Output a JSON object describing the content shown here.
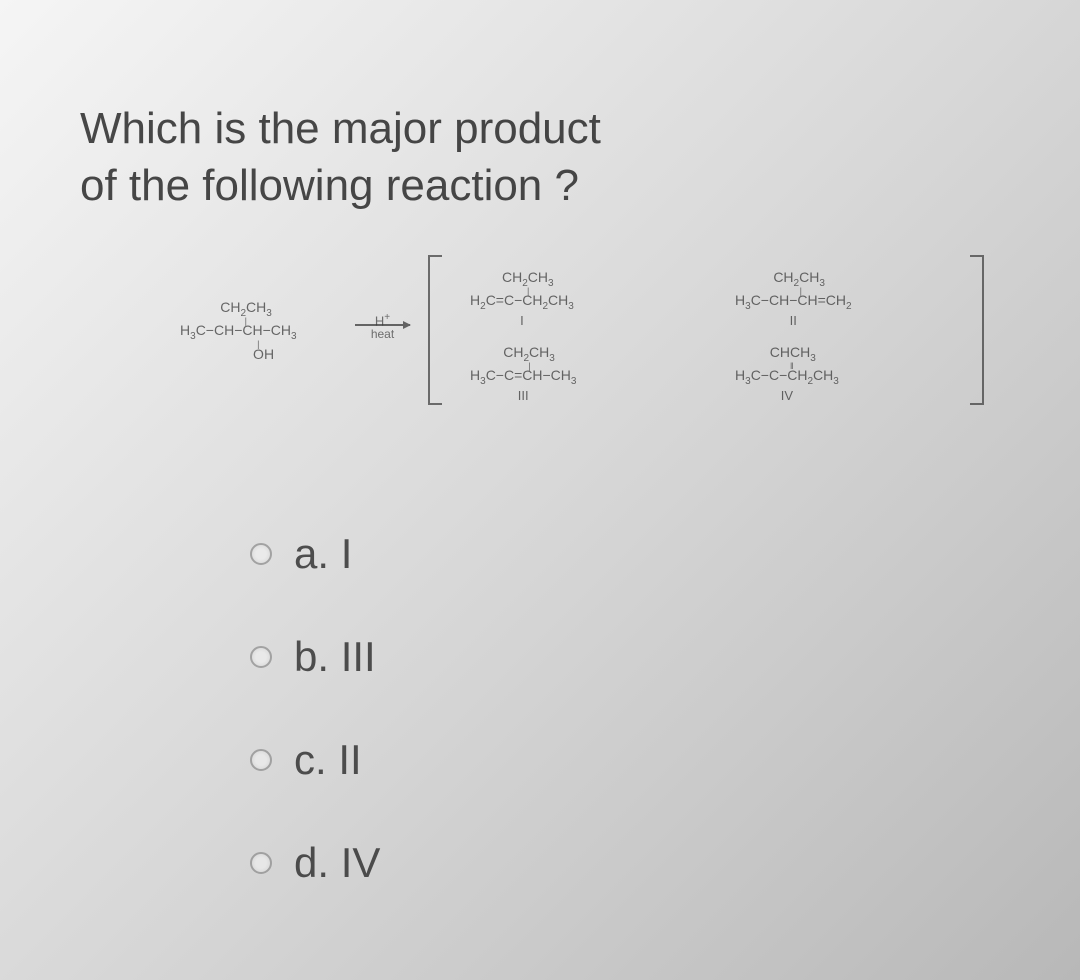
{
  "question": {
    "line1": "Which is the major product",
    "line2": "of the following reaction ?"
  },
  "reaction": {
    "reactant": {
      "top": "CH₂CH₃",
      "mid": "H₃C−CH−CH−CH₃",
      "bottom": "OH"
    },
    "arrow_over": "H⁺",
    "arrow_under": "heat",
    "products": {
      "p1_top": "CH₂CH₃",
      "p1_mid": "H₂C=C−CH₂CH₃",
      "p1_label": "I",
      "p2_top": "CH₂CH₃",
      "p2_mid": "H₃C−CH−CH=CH₂",
      "p2_label": "II",
      "p3_top": "CH₂CH₃",
      "p3_mid": "H₃C−C=CH−CH₃",
      "p3_label": "III",
      "p4_top": "CHCH₃",
      "p4_mid": "H₃C−C−CH₂CH₃",
      "p4_label": "IV"
    }
  },
  "options": {
    "a": "a. I",
    "b": "b. III",
    "c": "c. II",
    "d": "d. IV"
  },
  "style": {
    "bg": "#e8e8e8",
    "text": "#2a2a2a",
    "faint": "#3a3a3a"
  }
}
